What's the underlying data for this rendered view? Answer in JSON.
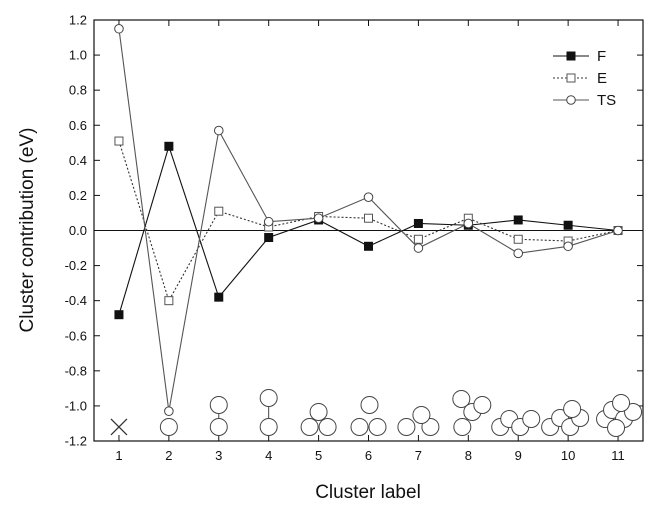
{
  "chart_data": {
    "type": "line",
    "xlabel": "Cluster label",
    "ylabel": "Cluster contribution (eV)",
    "categories": [
      "1",
      "2",
      "3",
      "4",
      "5",
      "6",
      "7",
      "8",
      "9",
      "10",
      "11"
    ],
    "x": [
      1,
      2,
      3,
      4,
      5,
      6,
      7,
      8,
      9,
      10,
      11
    ],
    "xlim": [
      0.5,
      11.5
    ],
    "ylim": [
      -1.2,
      1.2
    ],
    "y_ticks": [
      "-1.2",
      "-1.0",
      "-0.8",
      "-0.6",
      "-0.4",
      "-0.2",
      "0.0",
      "0.2",
      "0.4",
      "0.6",
      "0.8",
      "1.0",
      "1.2"
    ],
    "grid": false,
    "zero_line": true,
    "legend_position": "top-right",
    "series": [
      {
        "name": "F",
        "marker": "filled-square",
        "line": "solid",
        "values": [
          -0.48,
          0.48,
          -0.38,
          -0.04,
          0.06,
          -0.09,
          0.04,
          0.03,
          0.06,
          0.03,
          0.0
        ]
      },
      {
        "name": "E",
        "marker": "open-square",
        "line": "dotted",
        "values": [
          0.51,
          -0.4,
          0.11,
          0.02,
          0.08,
          0.07,
          -0.05,
          0.07,
          -0.05,
          -0.06,
          0.0
        ]
      },
      {
        "name": "TS",
        "marker": "open-circle",
        "line": "solid",
        "values": [
          1.15,
          -1.03,
          0.57,
          0.05,
          0.07,
          0.19,
          -0.1,
          0.04,
          -0.13,
          -0.09,
          0.0
        ]
      }
    ],
    "cluster_icons": [
      {
        "label": "1",
        "atoms": 0,
        "shape": "cross"
      },
      {
        "label": "2",
        "atoms": 1,
        "shape": "single"
      },
      {
        "label": "3",
        "atoms": 2,
        "shape": "vertical-pair"
      },
      {
        "label": "4",
        "atoms": 2,
        "shape": "vertical-pair-tall"
      },
      {
        "label": "5",
        "atoms": 3,
        "shape": "triangle"
      },
      {
        "label": "6",
        "atoms": 3,
        "shape": "triangle-tall"
      },
      {
        "label": "7",
        "atoms": 3,
        "shape": "triangle-compact"
      },
      {
        "label": "8",
        "atoms": 4,
        "shape": "tetra"
      },
      {
        "label": "9",
        "atoms": 4,
        "shape": "zigzag"
      },
      {
        "label": "10",
        "atoms": 4,
        "shape": "cluster"
      },
      {
        "label": "11",
        "atoms": 6,
        "shape": "dense"
      }
    ]
  }
}
